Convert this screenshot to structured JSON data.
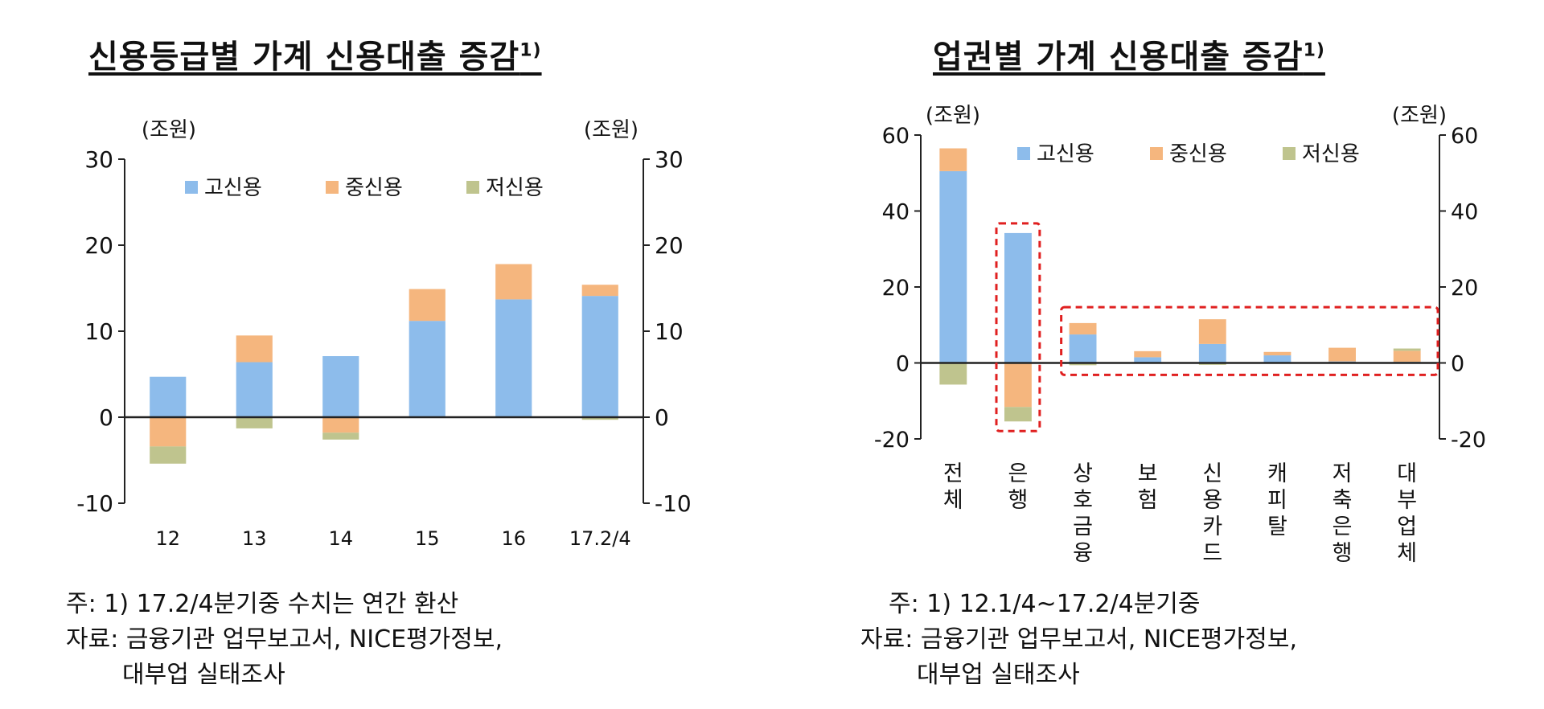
{
  "panels": [
    {
      "title": "신용등급별 가계 신용대출 증감",
      "title_sup": "1)",
      "unit_left": "(조원)",
      "unit_right": "(조원)",
      "notes": [
        "주: 1) 17.2/4분기중 수치는 연간 환산",
        "자료: 금융기관 업무보고서, NICE평가정보,",
        "대부업 실태조사"
      ]
    },
    {
      "title": "업권별 가계 신용대출 증감",
      "title_sup": "1)",
      "unit_left": "(조원)",
      "unit_right": "(조원)",
      "notes": [
        "주: 1) 12.1/4~17.2/4분기중",
        "자료: 금융기관 업무보고서, NICE평가정보,",
        "대부업 실태조사"
      ]
    }
  ],
  "colors": {
    "high": "#8DBCEB",
    "mid": "#F5B67E",
    "low": "#BFC48E",
    "highlight": "#E02020"
  },
  "chart_data": [
    {
      "type": "bar",
      "stacked": true,
      "title": "신용등급별 가계 신용대출 증감",
      "ylabel": "(조원)",
      "ylim": [
        -10,
        30
      ],
      "yticks": [
        -10,
        0,
        10,
        20,
        30
      ],
      "categories": [
        "12",
        "13",
        "14",
        "15",
        "16",
        "17.2/4"
      ],
      "series": [
        {
          "name": "고신용",
          "values": [
            4.7,
            6.4,
            7.1,
            11.2,
            13.7,
            14.1
          ]
        },
        {
          "name": "중신용",
          "values": [
            -3.4,
            3.1,
            -1.8,
            3.7,
            4.1,
            1.3
          ]
        },
        {
          "name": "저신용",
          "values": [
            -2.0,
            -1.3,
            -0.8,
            0.0,
            0.0,
            -0.3
          ]
        }
      ],
      "legend": "top"
    },
    {
      "type": "bar",
      "stacked": true,
      "title": "업권별 가계 신용대출 증감",
      "ylabel": "(조원)",
      "ylim": [
        -20,
        60
      ],
      "yticks": [
        -20,
        0,
        20,
        40,
        60
      ],
      "categories": [
        "전체",
        "은행",
        "상호금융",
        "보험",
        "신용카드",
        "캐피탈",
        "저축은행",
        "대부업체"
      ],
      "series": [
        {
          "name": "고신용",
          "values": [
            50.5,
            34.2,
            7.5,
            1.5,
            5.0,
            2.0,
            0.4,
            0.3
          ]
        },
        {
          "name": "중신용",
          "values": [
            6.0,
            -11.6,
            3.0,
            1.6,
            6.5,
            0.9,
            3.6,
            2.9
          ]
        },
        {
          "name": "저신용",
          "values": [
            -5.7,
            -3.8,
            -0.6,
            -0.2,
            -0.5,
            0.0,
            0.0,
            0.6
          ]
        }
      ],
      "legend": "top",
      "highlight_groups": [
        [
          "은행"
        ],
        [
          "상호금융",
          "보험",
          "신용카드",
          "캐피탈",
          "저축은행",
          "대부업체"
        ]
      ]
    }
  ]
}
